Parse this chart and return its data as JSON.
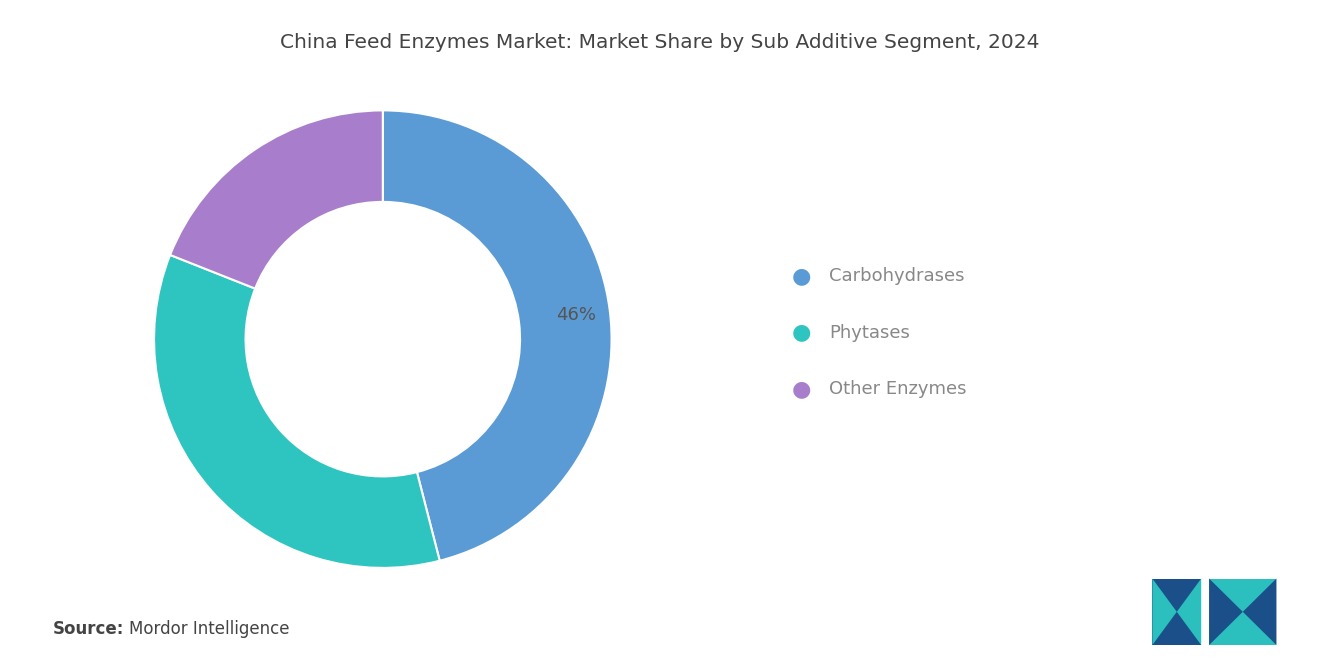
{
  "title": "China Feed Enzymes Market: Market Share by Sub Additive Segment, 2024",
  "segments": [
    "Carbohydrases",
    "Phytases",
    "Other Enzymes"
  ],
  "values": [
    46,
    35,
    19
  ],
  "colors": [
    "#5B9BD5",
    "#2EC4C0",
    "#A87ECC"
  ],
  "label_text": "46%",
  "label_color": "#555555",
  "source_bold": "Source:",
  "source_text": "Mordor Intelligence",
  "bg_color": "#FFFFFF",
  "title_color": "#444444",
  "legend_text_color": "#888888",
  "source_text_color": "#444444",
  "title_fontsize": 14.5,
  "legend_fontsize": 13,
  "source_fontsize": 12,
  "donut_width": 0.4,
  "start_angle": 90
}
